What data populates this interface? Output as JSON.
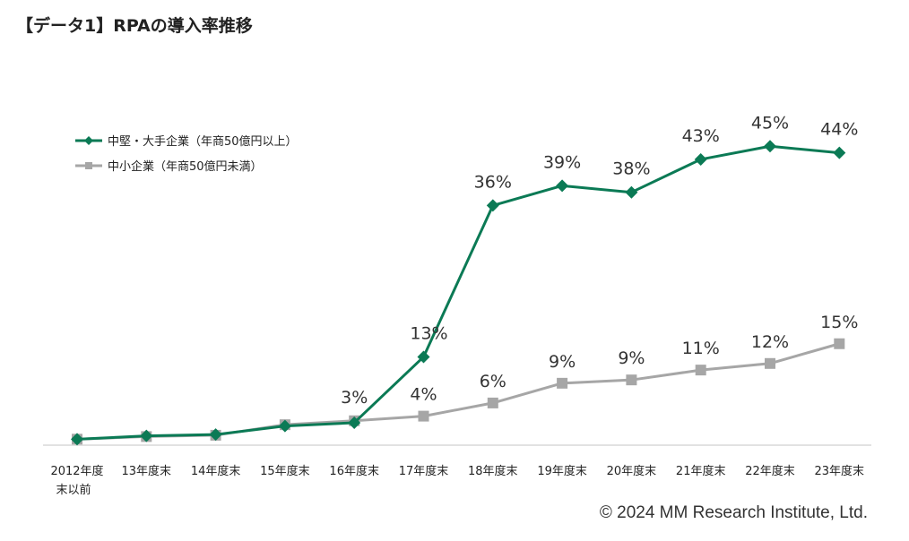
{
  "title": "【データ1】RPAの導入率推移",
  "copyright": "© 2024 MM Research Institute, Ltd.",
  "colors": {
    "large": "#0b7a55",
    "small": "#a6a6a6",
    "axis": "#d9d9d9"
  },
  "chart_data": {
    "type": "line",
    "categories": [
      "2012年度末以前",
      "13年度末",
      "14年度末",
      "15年度末",
      "16年度末",
      "17年度末",
      "18年度末",
      "19年度末",
      "20年度末",
      "21年度末",
      "22年度末",
      "23年度末"
    ],
    "category_lines": [
      [
        "2012年度",
        "末以前"
      ],
      [
        "13年度末"
      ],
      [
        "14年度末"
      ],
      [
        "15年度末"
      ],
      [
        "16年度末"
      ],
      [
        "17年度末"
      ],
      [
        "18年度末"
      ],
      [
        "19年度末"
      ],
      [
        "20年度末"
      ],
      [
        "21年度末"
      ],
      [
        "22年度末"
      ],
      [
        "23年度末"
      ]
    ],
    "ylim": [
      0,
      55
    ],
    "grid": false,
    "legend_position": "top-left",
    "series": [
      {
        "name": "中堅・大手企業（年商50億円以上）",
        "marker": "diamond",
        "color": "#0b7a55",
        "values": [
          0.5,
          1.0,
          1.2,
          2.5,
          3,
          13,
          36,
          39,
          38,
          43,
          45,
          44
        ],
        "labels": [
          "",
          "",
          "",
          "",
          "3%",
          "13%",
          "36%",
          "39%",
          "38%",
          "43%",
          "45%",
          "44%"
        ]
      },
      {
        "name": "中小企業（年商50億円未満）",
        "marker": "square",
        "color": "#a6a6a6",
        "values": [
          0.5,
          0.9,
          1.1,
          2.7,
          3.3,
          4,
          6,
          9,
          9.5,
          11,
          12,
          15
        ],
        "labels": [
          "",
          "",
          "",
          "",
          "",
          "4%",
          "6%",
          "9%",
          "9%",
          "11%",
          "12%",
          "15%"
        ]
      }
    ]
  }
}
